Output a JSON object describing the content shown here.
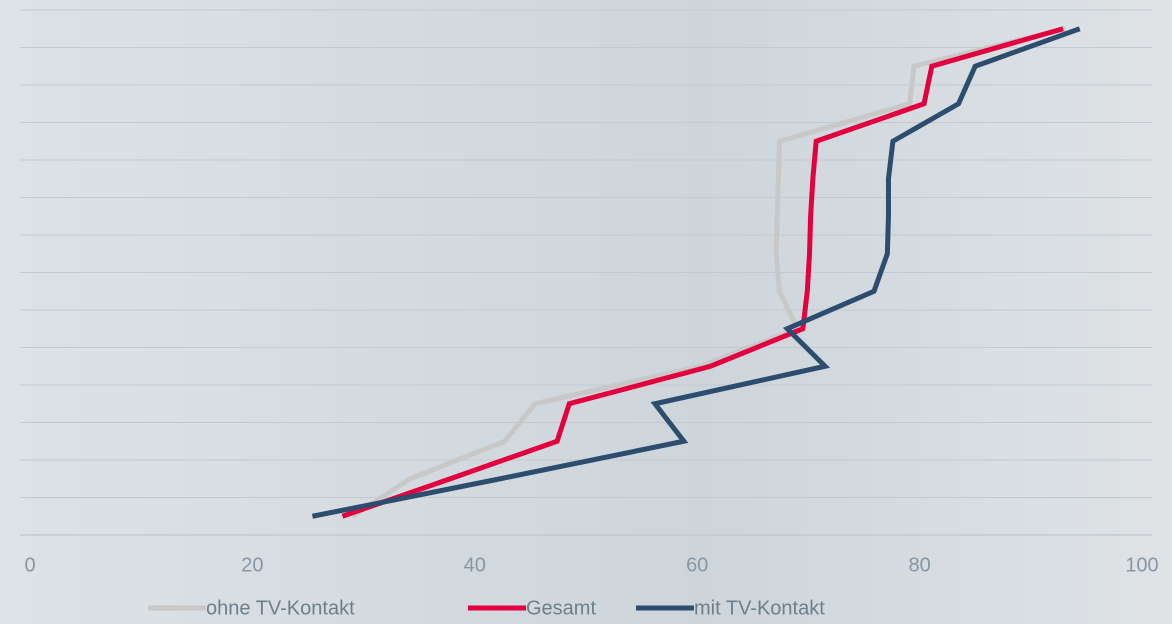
{
  "chart_data": {
    "type": "line",
    "orientation": "horizontal",
    "categories": [
      null,
      null,
      null,
      null,
      null,
      null,
      null,
      null,
      null,
      null,
      null,
      null,
      null,
      null
    ],
    "series": [
      {
        "name": "ohne TV-Kontakt",
        "color": "#c8c8c8",
        "values": [
          93.1,
          79.5,
          79.1,
          67.4,
          67.3,
          67.2,
          67.1,
          67.4,
          69.0,
          60.3,
          45.4,
          42.7,
          34.2,
          29.0
        ]
      },
      {
        "name": "Gesamt",
        "color": "#e2003f",
        "values": [
          92.9,
          81.1,
          80.4,
          70.7,
          70.4,
          70.2,
          70.1,
          69.9,
          69.5,
          61.2,
          48.5,
          47.4,
          37.8,
          28.1
        ]
      },
      {
        "name": "mit TV-Kontakt",
        "color": "#2c4d6e",
        "values": [
          94.4,
          85.0,
          83.5,
          77.6,
          77.2,
          77.2,
          77.1,
          75.9,
          68.1,
          71.5,
          56.2,
          58.8,
          42.3,
          25.4
        ]
      }
    ],
    "xlim": [
      0,
      100
    ],
    "xticks": [
      0,
      20,
      40,
      60,
      80,
      100
    ],
    "grid": true,
    "legend": "bottom"
  }
}
